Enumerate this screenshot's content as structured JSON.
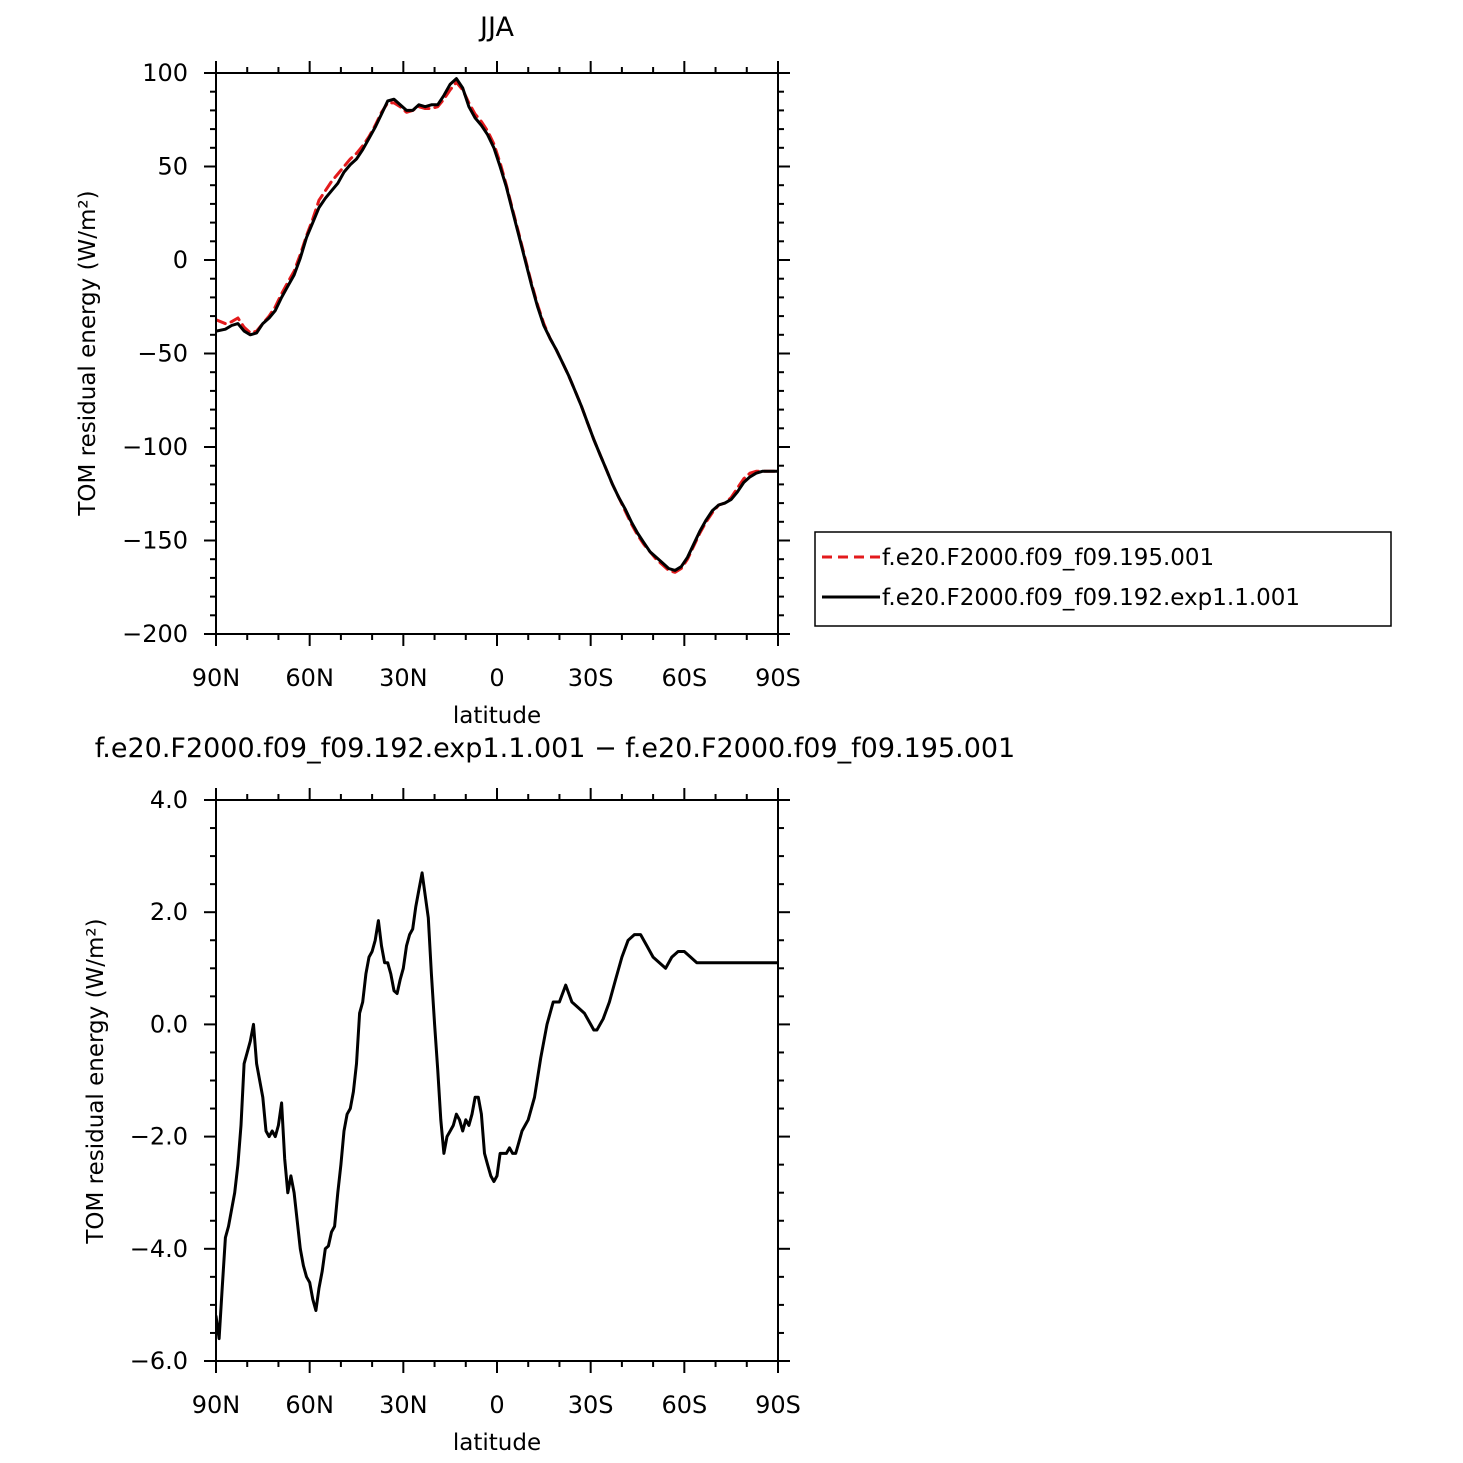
{
  "chart_data": [
    {
      "type": "line",
      "title": "JJA",
      "xlabel": "latitude",
      "ylabel": "TOM residual energy (W/m²)",
      "xlim": [
        90,
        -90
      ],
      "ylim": [
        -200,
        100
      ],
      "x_ticks": [
        90,
        60,
        30,
        0,
        -30,
        -60,
        -90
      ],
      "x_tick_labels": [
        "90N",
        "60N",
        "30N",
        "0",
        "30S",
        "60S",
        "90S"
      ],
      "y_ticks": [
        100,
        50,
        0,
        -50,
        -100,
        -150,
        -200
      ],
      "y_tick_labels": [
        "100",
        "50",
        "0",
        "−50",
        "−100",
        "−150",
        "−200"
      ],
      "legend_position": "right",
      "series": [
        {
          "name": "f.e20.F2000.f09_f09.195.001",
          "color": "#e31a1c",
          "dash": "dashed",
          "x": [
            90,
            87,
            85,
            83,
            81,
            79,
            77,
            75,
            73,
            71,
            69,
            67,
            65,
            63,
            61,
            59,
            57,
            55,
            53,
            51,
            49,
            47,
            45,
            43,
            41,
            39,
            37,
            35,
            33,
            31,
            29,
            27,
            25,
            23,
            21,
            19,
            17,
            15,
            13,
            11,
            9,
            7,
            5,
            3,
            1,
            -1,
            -3,
            -5,
            -7,
            -9,
            -11,
            -13,
            -15,
            -17,
            -19,
            -21,
            -23,
            -25,
            -27,
            -29,
            -31,
            -33,
            -35,
            -37,
            -39,
            -41,
            -43,
            -45,
            -47,
            -49,
            -51,
            -53,
            -55,
            -57,
            -59,
            -61,
            -63,
            -65,
            -67,
            -69,
            -71,
            -73,
            -75,
            -77,
            -79,
            -81,
            -83,
            -85,
            -87,
            -89,
            -90
          ],
          "values": [
            -32,
            -34,
            -33,
            -31,
            -36,
            -39,
            -38,
            -34,
            -30,
            -25,
            -18,
            -12,
            -6,
            3,
            13,
            22,
            32,
            37,
            42,
            46,
            50,
            54,
            57,
            61,
            66,
            72,
            79,
            84,
            84,
            82,
            79,
            80,
            82,
            81,
            81,
            82,
            86,
            91,
            95,
            91,
            84,
            78,
            74,
            69,
            62,
            52,
            40,
            27,
            14,
            1,
            -12,
            -24,
            -34,
            -42,
            -48,
            -55,
            -62,
            -70,
            -78,
            -87,
            -96,
            -104,
            -112,
            -120,
            -127,
            -134,
            -141,
            -147,
            -152,
            -156,
            -160,
            -163,
            -166,
            -167,
            -165,
            -160,
            -153,
            -146,
            -140,
            -135,
            -131,
            -130,
            -127,
            -122,
            -117,
            -114,
            -113,
            -113,
            -113,
            -113,
            -113
          ]
        },
        {
          "name": "f.e20.F2000.f09_f09.192.exp1.1.001",
          "color": "#000000",
          "dash": "solid",
          "x": [
            90,
            87,
            85,
            83,
            81,
            79,
            77,
            75,
            73,
            71,
            69,
            67,
            65,
            63,
            61,
            59,
            57,
            55,
            53,
            51,
            49,
            47,
            45,
            43,
            41,
            39,
            37,
            35,
            33,
            31,
            29,
            27,
            25,
            23,
            21,
            19,
            17,
            15,
            13,
            11,
            9,
            7,
            5,
            3,
            1,
            -1,
            -3,
            -5,
            -7,
            -9,
            -11,
            -13,
            -15,
            -17,
            -19,
            -21,
            -23,
            -25,
            -27,
            -29,
            -31,
            -33,
            -35,
            -37,
            -39,
            -41,
            -43,
            -45,
            -47,
            -49,
            -51,
            -53,
            -55,
            -57,
            -59,
            -61,
            -63,
            -65,
            -67,
            -69,
            -71,
            -73,
            -75,
            -77,
            -79,
            -81,
            -83,
            -85,
            -87,
            -89,
            -90
          ],
          "values": [
            -38,
            -37,
            -35,
            -34,
            -38,
            -40,
            -39,
            -34,
            -31,
            -27,
            -20,
            -14,
            -8,
            1,
            12,
            20,
            28,
            33,
            37,
            41,
            47,
            51,
            54,
            59,
            65,
            71,
            78,
            85,
            86,
            83,
            80,
            80,
            83,
            82,
            83,
            83,
            88,
            94,
            97,
            92,
            82,
            76,
            72,
            67,
            60,
            50,
            39,
            26,
            13,
            0,
            -13,
            -25,
            -35,
            -42,
            -48,
            -55,
            -62,
            -70,
            -78,
            -87,
            -96,
            -104,
            -112,
            -120,
            -127,
            -133,
            -140,
            -146,
            -151,
            -156,
            -159,
            -162,
            -165,
            -166,
            -164,
            -159,
            -152,
            -145,
            -139,
            -134,
            -131,
            -130,
            -128,
            -124,
            -119,
            -116,
            -114,
            -113,
            -113,
            -113,
            -113
          ]
        }
      ]
    },
    {
      "type": "line",
      "title": "f.e20.F2000.f09_f09.192.exp1.1.001 − f.e20.F2000.f09_f09.195.001",
      "xlabel": "latitude",
      "ylabel": "TOM residual energy (W/m²)",
      "xlim": [
        90,
        -90
      ],
      "ylim": [
        -6,
        4
      ],
      "x_ticks": [
        90,
        60,
        30,
        0,
        -30,
        -60,
        -90
      ],
      "x_tick_labels": [
        "90N",
        "60N",
        "30N",
        "0",
        "30S",
        "60S",
        "90S"
      ],
      "y_ticks": [
        4,
        2,
        0,
        -2,
        -4,
        -6
      ],
      "y_tick_labels": [
        "4.0",
        "2.0",
        "0.0",
        "−2.0",
        "−4.0",
        "−6.0"
      ],
      "series": [
        {
          "color": "#000000",
          "dash": "solid",
          "x": [
            90,
            89,
            88,
            87,
            86,
            85,
            84,
            83,
            82,
            81,
            80,
            79,
            78,
            77,
            76,
            75,
            74,
            73,
            72,
            71,
            70,
            69,
            68,
            67,
            66,
            65,
            64,
            63,
            62,
            61,
            60,
            59,
            58,
            57,
            56,
            55,
            54,
            53,
            52,
            51,
            50,
            49,
            48,
            47,
            46,
            45,
            44,
            43,
            42,
            41,
            40,
            39,
            38,
            37,
            36,
            35,
            34,
            33,
            32,
            31,
            30,
            29,
            28,
            27,
            26,
            25,
            24,
            23,
            22,
            21,
            20,
            19,
            18,
            17,
            16,
            15,
            14,
            13,
            12,
            11,
            10,
            9,
            8,
            7,
            6,
            5,
            4,
            3,
            2,
            1,
            0,
            -1,
            -2,
            -3,
            -4,
            -5,
            -6,
            -7,
            -8,
            -9,
            -10,
            -12,
            -14,
            -16,
            -18,
            -20,
            -22,
            -24,
            -26,
            -28,
            -30,
            -31,
            -32,
            -34,
            -36,
            -38,
            -40,
            -42,
            -44,
            -46,
            -48,
            -50,
            -52,
            -54,
            -56,
            -58,
            -60,
            -62,
            -64,
            -66,
            -68,
            -70,
            -72,
            -74,
            -76,
            -78,
            -80,
            -82,
            -84,
            -86,
            -88,
            -90
          ],
          "values": [
            -5.2,
            -5.6,
            -4.7,
            -3.8,
            -3.6,
            -3.3,
            -3.0,
            -2.5,
            -1.8,
            -0.7,
            -0.5,
            -0.3,
            0.0,
            -0.7,
            -1.0,
            -1.3,
            -1.9,
            -2.0,
            -1.9,
            -2.0,
            -1.8,
            -1.4,
            -2.4,
            -3.0,
            -2.7,
            -3.0,
            -3.5,
            -4.0,
            -4.3,
            -4.5,
            -4.6,
            -4.9,
            -5.1,
            -4.7,
            -4.4,
            -4.0,
            -3.95,
            -3.7,
            -3.6,
            -3.0,
            -2.5,
            -1.9,
            -1.6,
            -1.5,
            -1.2,
            -0.7,
            0.2,
            0.4,
            0.9,
            1.2,
            1.3,
            1.5,
            1.85,
            1.4,
            1.1,
            1.1,
            0.9,
            0.6,
            0.55,
            0.8,
            1.0,
            1.4,
            1.6,
            1.7,
            2.1,
            2.4,
            2.7,
            2.3,
            1.9,
            0.9,
            0.0,
            -0.8,
            -1.7,
            -2.3,
            -2.0,
            -1.9,
            -1.8,
            -1.6,
            -1.7,
            -1.9,
            -1.7,
            -1.8,
            -1.6,
            -1.3,
            -1.3,
            -1.6,
            -2.3,
            -2.5,
            -2.7,
            -2.8,
            -2.7,
            -2.3,
            -2.3,
            -2.3,
            -2.2,
            -2.3,
            -2.3,
            -2.1,
            -1.9,
            -1.8,
            -1.7,
            -1.3,
            -0.6,
            0.0,
            0.4,
            0.4,
            0.7,
            0.4,
            0.3,
            0.2,
            0.0,
            -0.1,
            -0.1,
            0.1,
            0.4,
            0.8,
            1.2,
            1.5,
            1.6,
            1.6,
            1.4,
            1.2,
            1.1,
            1.0,
            1.2,
            1.3,
            1.3,
            1.2,
            1.1,
            1.1,
            1.1,
            1.1,
            1.1,
            1.1,
            1.1,
            1.1,
            1.1,
            1.1,
            1.1,
            1.1,
            1.1,
            1.1
          ]
        }
      ]
    }
  ]
}
